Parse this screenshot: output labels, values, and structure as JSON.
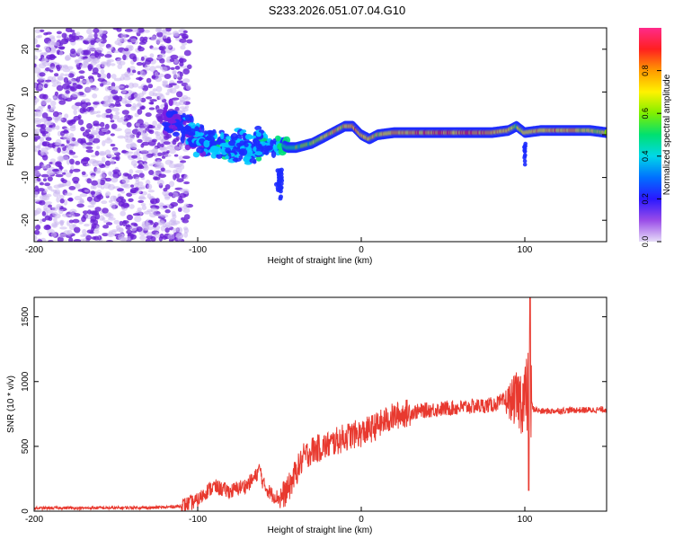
{
  "title": "S233.2026.051.07.04.G10",
  "colors": {
    "snr_line": "#e8392f",
    "frame": "#000000",
    "scatter": "#6a1fd6",
    "colorbar": [
      "#c9b8ee",
      "#7a1ee0",
      "#1d2bff",
      "#00c8ff",
      "#00e07a",
      "#8cf000",
      "#fff000",
      "#ff9a00",
      "#ff1a1a",
      "#ff2a8a"
    ]
  },
  "chart_data": [
    {
      "type": "heatmap",
      "title": "S233.2026.051.07.04.G10",
      "xlabel": "Height of straight line (km)",
      "ylabel": "Frequency (Hz)",
      "xlim": [
        -200,
        150
      ],
      "ylim": [
        -25,
        25
      ],
      "xticks": [
        -200,
        -100,
        0,
        100
      ],
      "yticks": [
        -20,
        -10,
        0,
        10,
        20
      ],
      "colorbar": {
        "label": "Normalized spectral amplitude",
        "range": [
          0,
          1
        ],
        "ticks": [
          "0.0",
          "0.2",
          "0.4",
          "0.6",
          "0.8"
        ]
      },
      "ridge": {
        "x": [
          -120,
          -110,
          -100,
          -90,
          -80,
          -70,
          -60,
          -55,
          -50,
          -45,
          -40,
          -35,
          -30,
          -25,
          -20,
          -15,
          -10,
          -5,
          0,
          5,
          10,
          20,
          30,
          40,
          50,
          60,
          70,
          80,
          90,
          95,
          100,
          110,
          120,
          130,
          140,
          150
        ],
        "y": [
          4,
          2,
          -1,
          -2,
          -3,
          -3,
          -2,
          -3,
          -2,
          -3,
          -3,
          -2.5,
          -2,
          -1,
          0,
          1,
          2,
          2,
          0,
          -1,
          0,
          0.5,
          0.5,
          0.5,
          0.5,
          0.5,
          0.5,
          0.5,
          1,
          2,
          0.5,
          1,
          1,
          1,
          1,
          0.5
        ],
        "amplitude": [
          0.15,
          0.25,
          0.3,
          0.35,
          0.35,
          0.3,
          0.35,
          0.3,
          0.4,
          0.45,
          0.5,
          0.55,
          0.6,
          0.65,
          0.7,
          0.75,
          0.75,
          0.8,
          0.8,
          0.75,
          0.7,
          0.75,
          0.8,
          0.85,
          0.9,
          0.85,
          0.9,
          0.8,
          0.75,
          0.6,
          0.7,
          0.75,
          0.8,
          0.75,
          0.7,
          0.65
        ]
      }
    },
    {
      "type": "line",
      "xlabel": "Height of straight line (km)",
      "ylabel": "SNR (10 * v/v)",
      "xlim": [
        -200,
        150
      ],
      "ylim": [
        0,
        1650
      ],
      "xticks": [
        -200,
        -100,
        0,
        100
      ],
      "yticks": [
        0,
        500,
        1000,
        1500
      ],
      "series": [
        {
          "name": "SNR",
          "x": [
            -200,
            -190,
            -180,
            -170,
            -160,
            -150,
            -140,
            -130,
            -120,
            -110,
            -100,
            -95,
            -90,
            -85,
            -80,
            -75,
            -70,
            -65,
            -62,
            -60,
            -55,
            -50,
            -45,
            -40,
            -35,
            -30,
            -25,
            -20,
            -15,
            -10,
            -5,
            0,
            5,
            10,
            15,
            20,
            25,
            30,
            40,
            50,
            60,
            70,
            80,
            85,
            90,
            95,
            100,
            103,
            105,
            110,
            120,
            130,
            140,
            150
          ],
          "y": [
            22,
            24,
            25,
            23,
            26,
            24,
            28,
            26,
            30,
            40,
            80,
            150,
            190,
            170,
            150,
            180,
            200,
            260,
            330,
            210,
            130,
            100,
            160,
            300,
            420,
            470,
            490,
            510,
            540,
            570,
            590,
            600,
            630,
            660,
            700,
            730,
            750,
            760,
            780,
            790,
            800,
            810,
            820,
            840,
            850,
            860,
            870,
            900,
            790,
            770,
            775,
            780,
            780,
            785
          ]
        }
      ]
    }
  ]
}
